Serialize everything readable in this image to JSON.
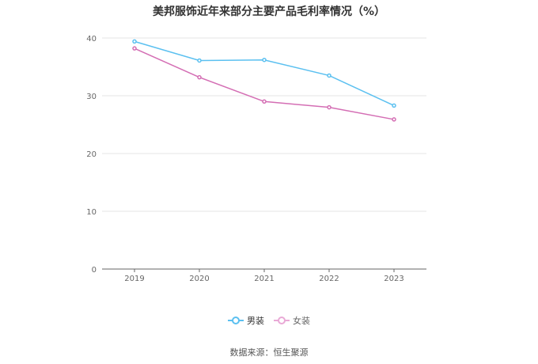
{
  "chart_data": {
    "type": "line",
    "title": "美邦服饰近年来部分主要产品毛利率情况（%）",
    "categories": [
      "2019",
      "2020",
      "2021",
      "2022",
      "2023"
    ],
    "series": [
      {
        "name": "男装",
        "color": "#5bc0f0",
        "values": [
          39.4,
          36.1,
          36.2,
          33.5,
          28.3
        ]
      },
      {
        "name": "女装",
        "color": "#d46eb4",
        "values": [
          38.2,
          33.2,
          29.0,
          28.0,
          25.9
        ]
      }
    ],
    "ylim": [
      0,
      40
    ],
    "yticks": [
      "0",
      "10",
      "20",
      "30",
      "40"
    ],
    "grid": true,
    "legend": "bottom"
  },
  "source": "数据来源：恒生聚源"
}
